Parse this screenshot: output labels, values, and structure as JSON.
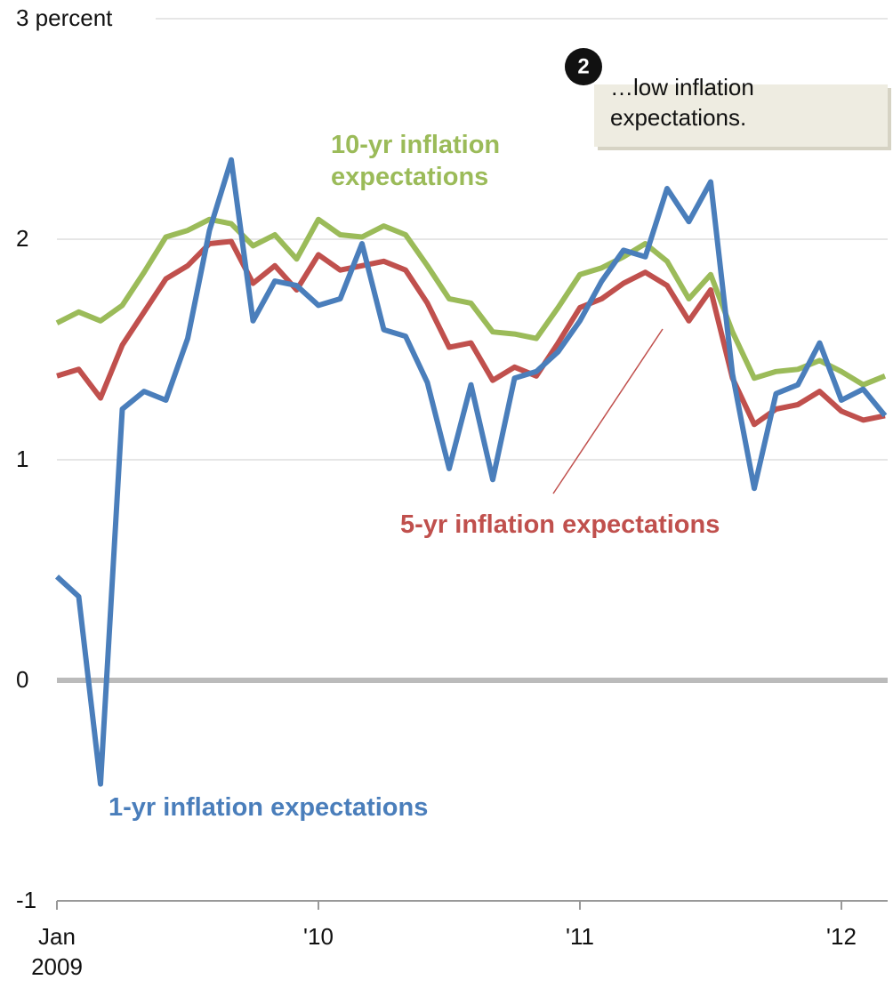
{
  "chart_data": {
    "type": "line",
    "categories": [
      "Jan 2009",
      null,
      null,
      null,
      null,
      null,
      null,
      null,
      null,
      null,
      null,
      null,
      "'10",
      null,
      null,
      null,
      null,
      null,
      null,
      null,
      null,
      null,
      null,
      null,
      "'11",
      null,
      null,
      null,
      null,
      null,
      null,
      null,
      null,
      null,
      null,
      null,
      "'12",
      null,
      null
    ],
    "series": [
      {
        "name": "10-yr inflation expectations",
        "color": "#9bbb59",
        "values": [
          1.62,
          1.67,
          1.63,
          1.7,
          1.85,
          2.01,
          2.04,
          2.09,
          2.07,
          1.97,
          2.02,
          1.91,
          2.09,
          2.02,
          2.01,
          2.06,
          2.02,
          1.88,
          1.73,
          1.71,
          1.58,
          1.57,
          1.55,
          1.69,
          1.84,
          1.87,
          1.92,
          1.98,
          1.9,
          1.73,
          1.84,
          1.58,
          1.37,
          1.4,
          1.41,
          1.45,
          1.4,
          1.34,
          1.38
        ]
      },
      {
        "name": "5-yr inflation expectations",
        "color": "#c0504d",
        "values": [
          1.38,
          1.41,
          1.28,
          1.52,
          1.67,
          1.82,
          1.88,
          1.98,
          1.99,
          1.8,
          1.88,
          1.77,
          1.93,
          1.86,
          1.88,
          1.9,
          1.86,
          1.71,
          1.51,
          1.53,
          1.36,
          1.42,
          1.38,
          1.53,
          1.69,
          1.73,
          1.8,
          1.85,
          1.79,
          1.63,
          1.77,
          1.37,
          1.16,
          1.23,
          1.25,
          1.31,
          1.22,
          1.18,
          1.2
        ]
      },
      {
        "name": "1-yr inflation expectations",
        "color": "#4a7ebb",
        "values": [
          0.47,
          0.38,
          -0.47,
          1.23,
          1.31,
          1.27,
          1.55,
          2.04,
          2.36,
          1.63,
          1.81,
          1.79,
          1.7,
          1.73,
          1.98,
          1.59,
          1.56,
          1.35,
          0.96,
          1.34,
          0.91,
          1.37,
          1.4,
          1.49,
          1.63,
          1.81,
          1.95,
          1.92,
          2.23,
          2.08,
          2.26,
          1.39,
          0.87,
          1.3,
          1.34,
          1.53,
          1.27,
          1.32,
          1.2
        ]
      }
    ],
    "ylim": [
      -1,
      3
    ],
    "yticks": [
      -1,
      0,
      1,
      2,
      {
        "value": 3,
        "label": "3 percent"
      }
    ],
    "grid": true,
    "annotation": {
      "badge": "2",
      "text": "…low inflation expectations."
    }
  }
}
